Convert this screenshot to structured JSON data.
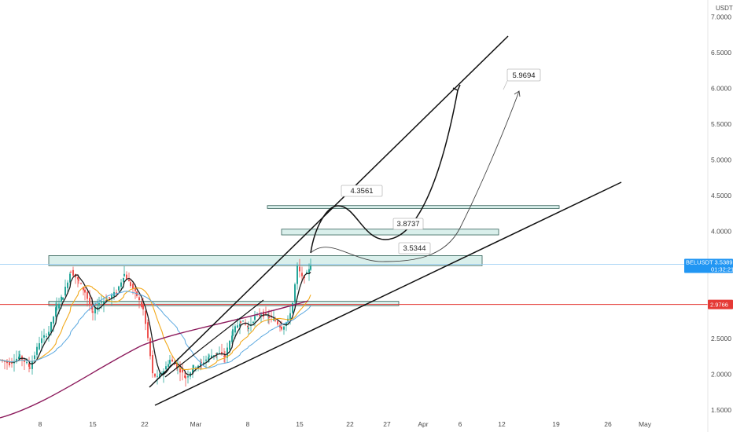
{
  "chart_data": {
    "type": "candlestick",
    "symbol": "BELUSDT",
    "y_unit": "USDT",
    "ylim": [
      1.4,
      7.1
    ],
    "y_ticks": [
      "7.0000",
      "6.5000",
      "6.0000",
      "5.5000",
      "5.0000",
      "4.5000",
      "4.0000",
      "3.5000",
      "3.0000",
      "2.5000",
      "2.0000",
      "1.5000"
    ],
    "x_ticks": [
      "8",
      "15",
      "22",
      "Mar",
      "8",
      "15",
      "22",
      "27",
      "Apr",
      "6",
      "12",
      "19",
      "26",
      "May"
    ],
    "last_price": {
      "label": "BELUSDT",
      "value": "3.5389",
      "countdown": "01:32:21"
    },
    "red_level": {
      "value": "2.9766"
    },
    "price_boxes": [
      {
        "low": 3.52,
        "high": 3.66
      },
      {
        "low": 3.95,
        "high": 4.03
      },
      {
        "low": 4.32,
        "high": 4.36
      },
      {
        "low": 2.96,
        "high": 3.02
      }
    ],
    "annotations": [
      "4.3561",
      "3.8737",
      "3.5344",
      "5.9694"
    ],
    "series": [
      {
        "name": "",
        "color": "#1e1e1e"
      },
      {
        "name": "",
        "color": "#f2a91c"
      },
      {
        "name": "",
        "color": "#5aa8e0"
      },
      {
        "name": "",
        "color": "#8c1a5c"
      }
    ],
    "colors": {
      "up": "#26a69a",
      "down": "#ef5350",
      "box_fill": "#cce9e4",
      "box_stroke": "#2f5e55",
      "red_line": "#e53935",
      "last_tag": "#2196f3"
    }
  }
}
